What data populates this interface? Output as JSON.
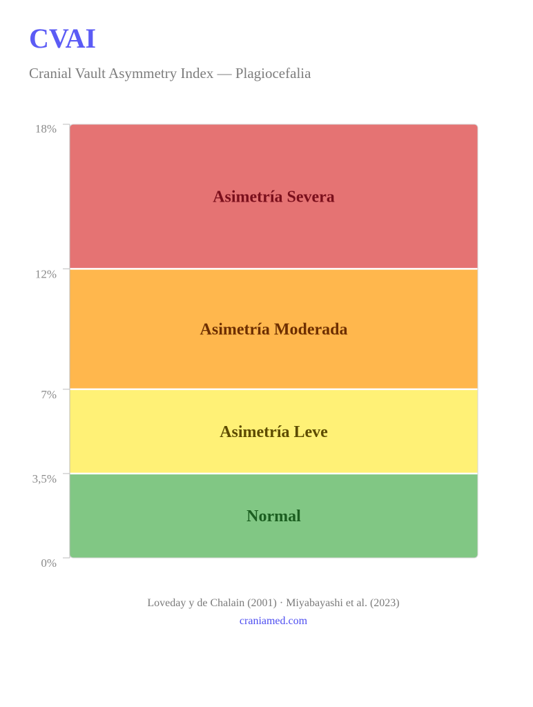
{
  "header": {
    "title": "CVAI",
    "subtitle": "Cranial Vault Asymmetry Index — Plagiocefalia"
  },
  "footer": {
    "source": "Loveday y de Chalain (2001) · Miyabayashi et al. (2023)",
    "site": "craniamed.com"
  },
  "chart_data": {
    "type": "bar",
    "stacked": true,
    "title": "CVAI",
    "subtitle": "Cranial Vault Asymmetry Index — Plagiocefalia",
    "xlabel": "",
    "ylabel": "",
    "ylim": [
      0,
      18
    ],
    "y_unit": "%",
    "grid": false,
    "y_ticks": [
      {
        "value": 0,
        "label": "0%"
      },
      {
        "value": 3.5,
        "label": "3,5%"
      },
      {
        "value": 7,
        "label": "7%"
      },
      {
        "value": 12,
        "label": "12%"
      },
      {
        "value": 18,
        "label": "18%"
      }
    ],
    "bands": [
      {
        "label": "Normal",
        "from": 0,
        "to": 3.5,
        "color": "#81c784",
        "text_color": "#1b5e20"
      },
      {
        "label": "Asimetría Leve",
        "from": 3.5,
        "to": 7,
        "color": "#fff176",
        "text_color": "#5d4b00"
      },
      {
        "label": "Asimetría Moderada",
        "from": 7,
        "to": 12,
        "color": "#ffb74d",
        "text_color": "#6d2e00"
      },
      {
        "label": "Asimetría Severa",
        "from": 12,
        "to": 18,
        "color": "#e57373",
        "text_color": "#7a0f1c"
      }
    ]
  }
}
